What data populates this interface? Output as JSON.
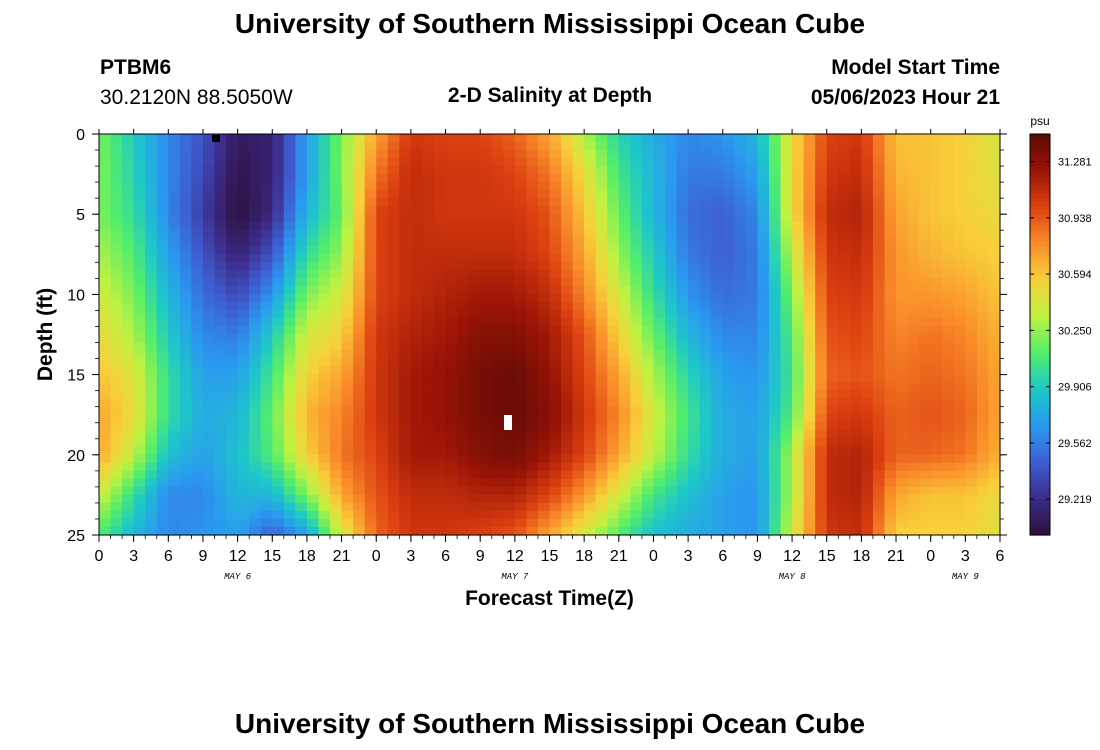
{
  "header": {
    "title": "University of Southern Mississippi Ocean Cube",
    "station": "PTBM6",
    "coordinates": "30.2120N  88.5050W",
    "plot_title": "2-D Salinity at Depth",
    "model_start_label": "Model Start Time",
    "model_start_value": "05/06/2023 Hour 21"
  },
  "footer": {
    "title": "University of Southern Mississippi Ocean Cube"
  },
  "chart_data": {
    "type": "heatmap",
    "xlabel": "Forecast Time(Z)",
    "ylabel": "Depth (ft)",
    "colorbar_unit": "psu",
    "colorbar_range": [
      29.0,
      31.45
    ],
    "colorbar_ticks": [
      "29.219",
      "29.562",
      "29.906",
      "30.250",
      "30.594",
      "30.938",
      "31.281"
    ],
    "colorbar_stops": [
      "#2d0f3d",
      "#3c2c8a",
      "#3e5ed2",
      "#2a9af0",
      "#1ec8c8",
      "#53ee6a",
      "#bff242",
      "#f8d03a",
      "#fa8c2a",
      "#dc4010",
      "#9a1406",
      "#5a0a06"
    ],
    "xlim": [
      0,
      78
    ],
    "ylim": [
      0,
      25
    ],
    "y_inverted": true,
    "x_tick_labels": [
      "0",
      "3",
      "6",
      "9",
      "12",
      "15",
      "18",
      "21",
      "0",
      "3",
      "6",
      "9",
      "12",
      "15",
      "18",
      "21",
      "0",
      "3",
      "6",
      "9",
      "12",
      "15",
      "18",
      "21",
      "0",
      "3",
      "6"
    ],
    "y_ticks": [
      0,
      5,
      10,
      15,
      20,
      25
    ],
    "date_labels": [
      {
        "label": "MAY 6",
        "hour": 12
      },
      {
        "label": "MAY 7",
        "hour": 36
      },
      {
        "label": "MAY 8",
        "hour": 60
      },
      {
        "label": "MAY 9",
        "hour": 75
      }
    ],
    "x_hours": [
      0,
      3,
      6,
      9,
      12,
      15,
      18,
      21,
      24,
      27,
      30,
      33,
      36,
      39,
      42,
      45,
      48,
      51,
      54,
      57,
      60,
      63,
      66,
      69,
      72,
      75,
      78
    ],
    "depths": [
      0,
      2.5,
      5,
      7.5,
      10,
      12.5,
      15,
      17.5,
      20,
      22.5,
      25
    ],
    "series": [
      {
        "name": "salinity at depth",
        "values": [
          [
            30.2,
            30.2,
            30.2,
            30.3,
            30.4,
            30.5,
            30.6,
            30.7,
            30.7,
            30.4,
            30.1
          ],
          [
            29.9,
            29.95,
            30.0,
            30.1,
            30.2,
            30.3,
            30.45,
            30.5,
            30.35,
            30.0,
            29.8
          ],
          [
            29.6,
            29.6,
            29.6,
            29.7,
            29.8,
            29.9,
            30.0,
            30.0,
            29.85,
            29.6,
            29.6
          ],
          [
            29.4,
            29.35,
            29.3,
            29.4,
            29.5,
            29.6,
            29.7,
            29.75,
            29.7,
            29.6,
            29.65
          ],
          [
            29.1,
            29.05,
            29.0,
            29.15,
            29.35,
            29.55,
            29.7,
            29.8,
            29.85,
            29.8,
            29.7
          ],
          [
            29.15,
            29.15,
            29.2,
            29.4,
            29.65,
            29.9,
            30.05,
            30.15,
            30.1,
            29.8,
            29.45
          ],
          [
            29.7,
            29.7,
            29.8,
            30.0,
            30.2,
            30.4,
            30.55,
            30.65,
            30.55,
            30.2,
            29.7
          ],
          [
            30.2,
            30.2,
            30.15,
            30.25,
            30.4,
            30.55,
            30.7,
            30.8,
            30.85,
            30.7,
            30.4
          ],
          [
            30.7,
            30.85,
            31.0,
            31.0,
            31.0,
            31.05,
            31.05,
            31.05,
            31.0,
            30.95,
            30.9
          ],
          [
            31.05,
            31.1,
            31.1,
            31.1,
            31.1,
            31.15,
            31.2,
            31.2,
            31.2,
            31.1,
            31.05
          ],
          [
            31.0,
            31.05,
            31.05,
            31.1,
            31.15,
            31.2,
            31.25,
            31.25,
            31.2,
            31.1,
            31.05
          ],
          [
            31.0,
            31.05,
            31.05,
            31.1,
            31.2,
            31.3,
            31.35,
            31.35,
            31.3,
            31.15,
            31.0
          ],
          [
            30.9,
            31.0,
            31.05,
            31.1,
            31.2,
            31.3,
            31.4,
            31.4,
            31.35,
            31.15,
            30.95
          ],
          [
            30.7,
            30.85,
            30.95,
            31.0,
            31.1,
            31.2,
            31.25,
            31.3,
            31.2,
            31.0,
            30.7
          ],
          [
            30.3,
            30.5,
            30.6,
            30.7,
            30.8,
            30.95,
            31.0,
            31.05,
            31.0,
            30.75,
            30.4
          ],
          [
            29.95,
            30.05,
            30.15,
            30.25,
            30.4,
            30.55,
            30.7,
            30.8,
            30.7,
            30.4,
            30.1
          ],
          [
            29.75,
            29.8,
            29.8,
            29.9,
            30.0,
            30.15,
            30.3,
            30.4,
            30.35,
            30.05,
            29.85
          ],
          [
            29.6,
            29.55,
            29.5,
            29.55,
            29.65,
            29.8,
            29.95,
            30.05,
            30.0,
            29.85,
            29.75
          ],
          [
            29.65,
            29.55,
            29.45,
            29.45,
            29.5,
            29.6,
            29.7,
            29.75,
            29.75,
            29.7,
            29.7
          ],
          [
            29.8,
            29.7,
            29.6,
            29.55,
            29.55,
            29.6,
            29.65,
            29.7,
            29.7,
            29.65,
            29.65
          ],
          [
            30.5,
            30.5,
            30.5,
            30.35,
            30.2,
            30.1,
            30.05,
            30.1,
            30.3,
            30.3,
            30.4
          ],
          [
            31.0,
            31.05,
            31.1,
            31.05,
            31.0,
            30.95,
            30.9,
            31.0,
            31.1,
            31.1,
            31.05
          ],
          [
            31.05,
            31.1,
            31.15,
            31.1,
            31.05,
            31.0,
            30.95,
            31.05,
            31.15,
            31.15,
            31.1
          ],
          [
            30.6,
            30.65,
            30.7,
            30.75,
            30.75,
            30.8,
            30.85,
            30.9,
            30.9,
            30.7,
            30.55
          ],
          [
            30.6,
            30.6,
            30.6,
            30.65,
            30.75,
            30.85,
            30.9,
            30.95,
            30.9,
            30.6,
            30.55
          ],
          [
            30.55,
            30.55,
            30.55,
            30.6,
            30.7,
            30.8,
            30.85,
            30.9,
            30.85,
            30.6,
            30.55
          ],
          [
            30.4,
            30.45,
            30.5,
            30.55,
            30.6,
            30.65,
            30.7,
            30.7,
            30.65,
            30.5,
            30.45
          ]
        ]
      }
    ]
  }
}
